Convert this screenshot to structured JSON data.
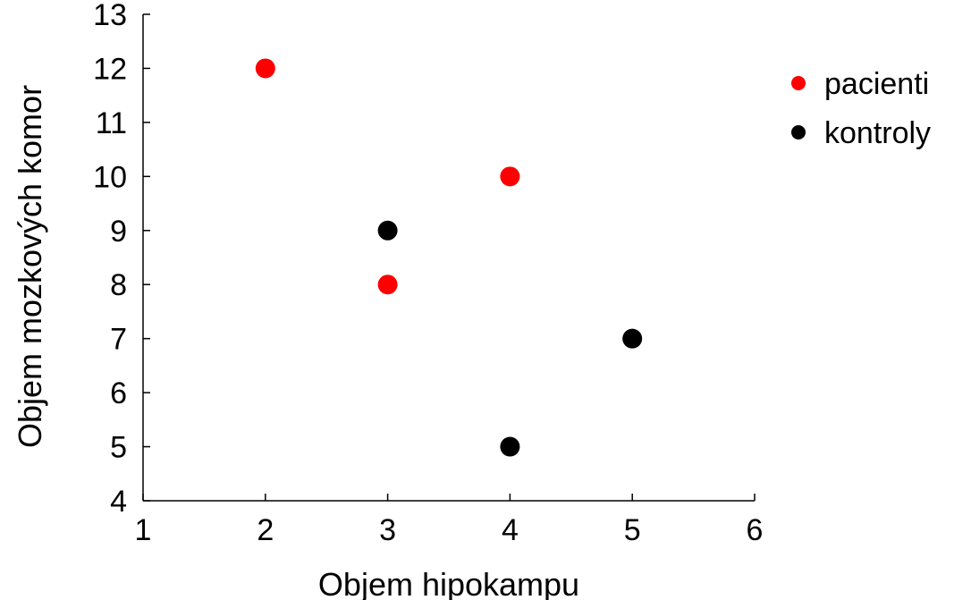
{
  "chart_data": {
    "type": "scatter",
    "title": "",
    "xlabel": "Objem hipokampu",
    "ylabel": "Objem mozkových komor",
    "xlim": [
      1,
      6
    ],
    "ylim": [
      4,
      13
    ],
    "xticks": [
      1,
      2,
      3,
      4,
      5,
      6
    ],
    "yticks": [
      4,
      5,
      6,
      7,
      8,
      9,
      10,
      11,
      12,
      13
    ],
    "grid": false,
    "legend_position": "right",
    "series": [
      {
        "name": "pacienti",
        "color": "#ff0000",
        "points": [
          {
            "x": 2,
            "y": 12
          },
          {
            "x": 4,
            "y": 10
          },
          {
            "x": 3,
            "y": 8
          }
        ]
      },
      {
        "name": "kontroly",
        "color": "#000000",
        "points": [
          {
            "x": 3,
            "y": 9
          },
          {
            "x": 5,
            "y": 7
          },
          {
            "x": 4,
            "y": 5
          }
        ]
      }
    ]
  }
}
